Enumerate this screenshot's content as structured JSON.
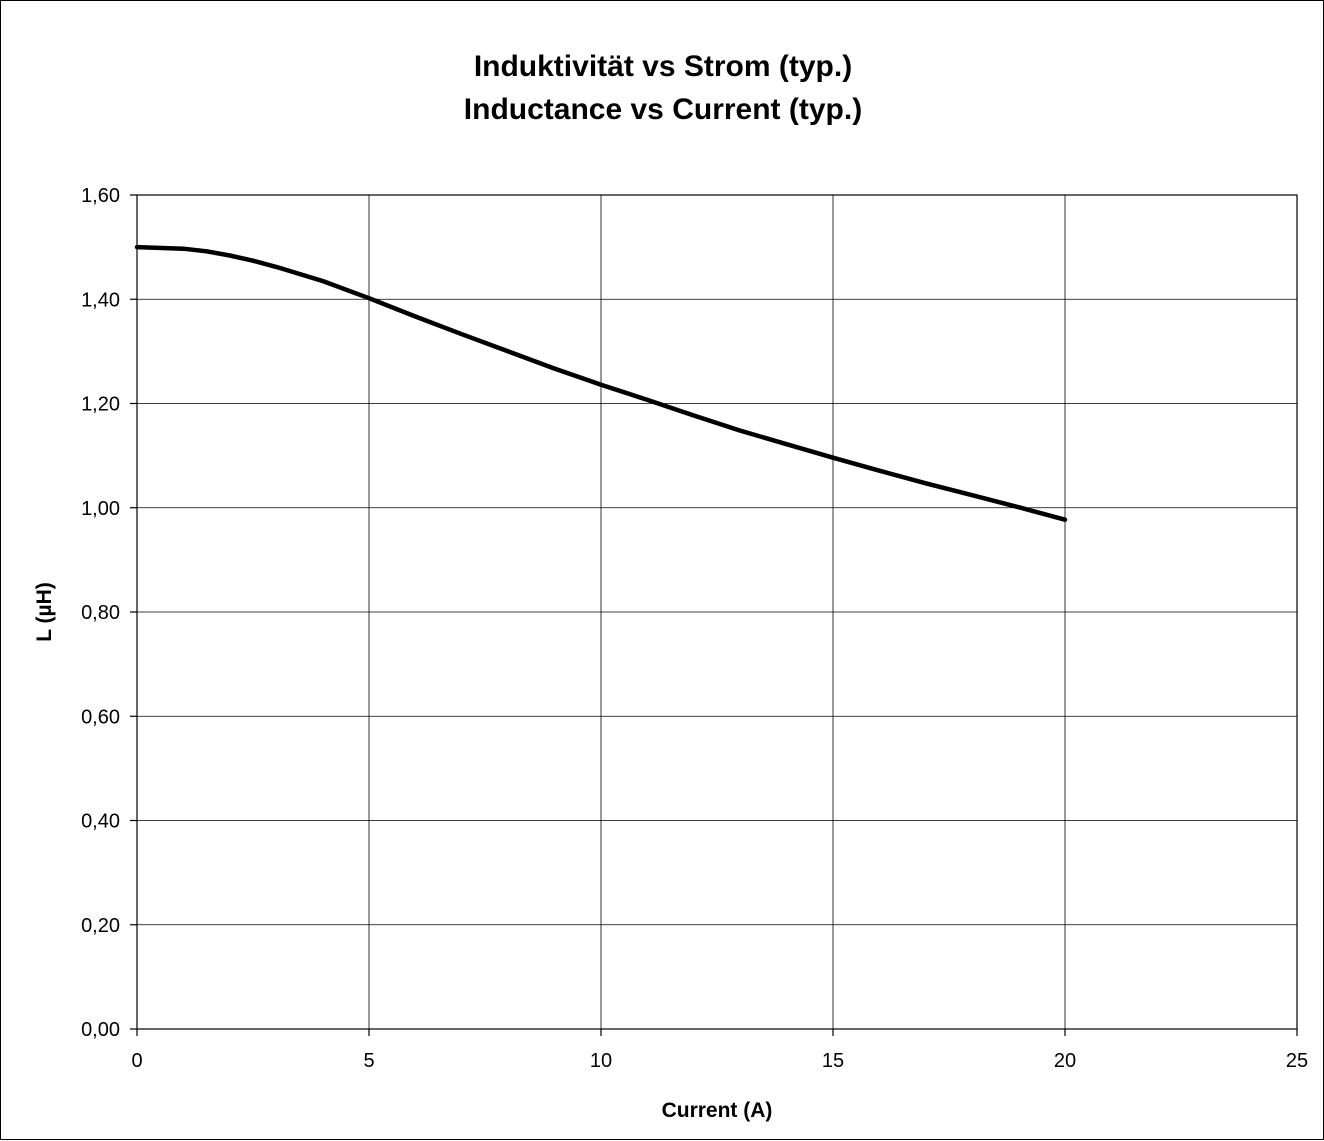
{
  "chart_data": {
    "type": "line",
    "title": "Induktivität vs Strom (typ.)",
    "subtitle": "Inductance vs Current (typ.)",
    "xlabel": "Current (A)",
    "ylabel": "L (µH)",
    "xlim": [
      0,
      25
    ],
    "ylim": [
      0,
      1.6
    ],
    "x_ticks": [
      "0",
      "5",
      "10",
      "15",
      "20",
      "25"
    ],
    "y_ticks": [
      "0,00",
      "0,20",
      "0,40",
      "0,60",
      "0,80",
      "1,00",
      "1,20",
      "1,40",
      "1,60"
    ],
    "grid": true,
    "legend": "none",
    "line_color": "#000000",
    "series": [
      {
        "x": [
          0,
          1,
          1.5,
          2,
          2.5,
          3,
          4,
          5,
          6,
          7,
          8,
          9,
          10,
          11,
          12,
          13,
          14,
          15,
          16,
          17,
          18,
          19,
          20
        ],
        "values": [
          1.5,
          1.497,
          1.492,
          1.484,
          1.474,
          1.462,
          1.435,
          1.402,
          1.367,
          1.333,
          1.3,
          1.267,
          1.236,
          1.207,
          1.177,
          1.148,
          1.122,
          1.096,
          1.071,
          1.047,
          1.024,
          1.001,
          0.977
        ]
      }
    ]
  }
}
